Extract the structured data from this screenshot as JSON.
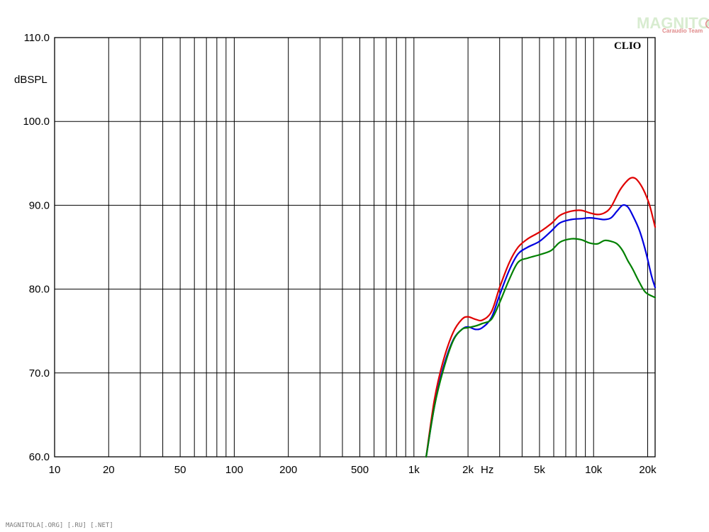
{
  "chart_data": {
    "type": "line",
    "title": "",
    "ylabel": "dBSPL",
    "xlabel": "Hz",
    "xscale": "log",
    "xlim": [
      10,
      22000
    ],
    "ylim": [
      60,
      110
    ],
    "grid": true,
    "y_ticks": [
      {
        "value": 60,
        "label": "60.0"
      },
      {
        "value": 70,
        "label": "70.0"
      },
      {
        "value": 80,
        "label": "80.0"
      },
      {
        "value": 90,
        "label": "90.0"
      },
      {
        "value": 100,
        "label": "100.0"
      },
      {
        "value": 110,
        "label": "110.0"
      }
    ],
    "x_ticks": [
      {
        "value": 10,
        "label": "10"
      },
      {
        "value": 20,
        "label": "20"
      },
      {
        "value": 50,
        "label": "50"
      },
      {
        "value": 100,
        "label": "100"
      },
      {
        "value": 200,
        "label": "200"
      },
      {
        "value": 500,
        "label": "500"
      },
      {
        "value": 1000,
        "label": "1k"
      },
      {
        "value": 2000,
        "label": "2k"
      },
      {
        "value": 5000,
        "label": "5k"
      },
      {
        "value": 10000,
        "label": "10k"
      },
      {
        "value": 20000,
        "label": "20k"
      }
    ],
    "series": [
      {
        "color": "#e00000",
        "points": [
          [
            1170,
            60
          ],
          [
            1300,
            66.8
          ],
          [
            1450,
            71.3
          ],
          [
            1650,
            74.8
          ],
          [
            1850,
            76.4
          ],
          [
            2000,
            76.7
          ],
          [
            2200,
            76.4
          ],
          [
            2400,
            76.3
          ],
          [
            2700,
            77.3
          ],
          [
            3000,
            80.2
          ],
          [
            3400,
            83.2
          ],
          [
            3800,
            85.0
          ],
          [
            4300,
            86.0
          ],
          [
            5000,
            86.8
          ],
          [
            5800,
            87.8
          ],
          [
            6500,
            88.8
          ],
          [
            7500,
            89.3
          ],
          [
            8500,
            89.4
          ],
          [
            9500,
            89.1
          ],
          [
            10500,
            88.9
          ],
          [
            11500,
            89.1
          ],
          [
            12500,
            89.8
          ],
          [
            14000,
            91.8
          ],
          [
            15500,
            93.0
          ],
          [
            16500,
            93.3
          ],
          [
            17500,
            93.0
          ],
          [
            19000,
            91.8
          ],
          [
            20500,
            90.0
          ],
          [
            22000,
            87.4
          ]
        ]
      },
      {
        "color": "#0000e0",
        "points": [
          [
            1170,
            60
          ],
          [
            1300,
            66.0
          ],
          [
            1450,
            70.5
          ],
          [
            1650,
            73.9
          ],
          [
            1850,
            75.2
          ],
          [
            2000,
            75.5
          ],
          [
            2200,
            75.2
          ],
          [
            2400,
            75.4
          ],
          [
            2700,
            76.6
          ],
          [
            3000,
            79.3
          ],
          [
            3400,
            82.3
          ],
          [
            3800,
            84.2
          ],
          [
            4300,
            85.0
          ],
          [
            5000,
            85.7
          ],
          [
            5800,
            86.9
          ],
          [
            6500,
            87.9
          ],
          [
            7500,
            88.3
          ],
          [
            8500,
            88.4
          ],
          [
            9500,
            88.5
          ],
          [
            10500,
            88.4
          ],
          [
            11500,
            88.3
          ],
          [
            12500,
            88.5
          ],
          [
            13500,
            89.3
          ],
          [
            14500,
            90.0
          ],
          [
            15500,
            89.8
          ],
          [
            16500,
            88.8
          ],
          [
            18000,
            87.0
          ],
          [
            19500,
            84.5
          ],
          [
            21000,
            81.6
          ],
          [
            22000,
            80.2
          ]
        ]
      },
      {
        "color": "#008000",
        "points": [
          [
            1170,
            60
          ],
          [
            1300,
            66.0
          ],
          [
            1450,
            70.2
          ],
          [
            1650,
            73.8
          ],
          [
            1850,
            75.2
          ],
          [
            2000,
            75.4
          ],
          [
            2200,
            75.6
          ],
          [
            2400,
            75.9
          ],
          [
            2700,
            76.4
          ],
          [
            3000,
            78.4
          ],
          [
            3400,
            81.2
          ],
          [
            3800,
            83.2
          ],
          [
            4300,
            83.7
          ],
          [
            5000,
            84.1
          ],
          [
            5800,
            84.6
          ],
          [
            6500,
            85.6
          ],
          [
            7500,
            86.0
          ],
          [
            8500,
            85.9
          ],
          [
            9500,
            85.5
          ],
          [
            10500,
            85.4
          ],
          [
            11500,
            85.8
          ],
          [
            12500,
            85.7
          ],
          [
            13500,
            85.4
          ],
          [
            14500,
            84.6
          ],
          [
            15500,
            83.4
          ],
          [
            16500,
            82.4
          ],
          [
            18000,
            80.8
          ],
          [
            19500,
            79.6
          ],
          [
            22000,
            79.0
          ]
        ]
      }
    ]
  },
  "labels": {
    "brand": "CLIO",
    "watermark_main": "MAGNITOLA",
    "watermark_sub": "Caraudio Team",
    "footer": "MAGNITOLA[.ORG] [.RU] [.NET]"
  }
}
